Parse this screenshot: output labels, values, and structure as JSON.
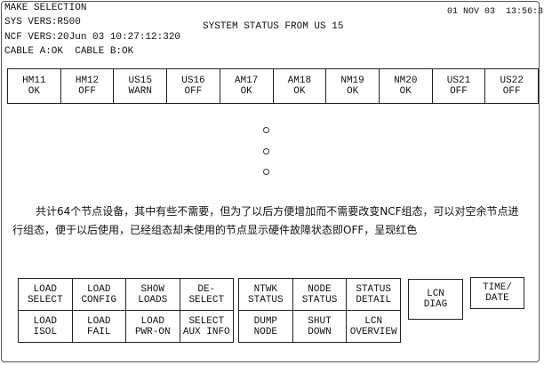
{
  "header": {
    "make_selection": "MAKE SELECTION",
    "sys_vers": "SYS VERS:R500",
    "ncf_vers": "NCF VERS:20Jun 03 10:27:12:320",
    "cables": "CABLE A:OK  CABLE B:OK",
    "title": "SYSTEM STATUS FROM US 15",
    "datetime": "01 NOV 03  13:56:32"
  },
  "nodes": [
    {
      "name": "HM11",
      "status": "OK"
    },
    {
      "name": "HM12",
      "status": "OFF"
    },
    {
      "name": "US15",
      "status": "WARN"
    },
    {
      "name": "US16",
      "status": "OFF"
    },
    {
      "name": "AM17",
      "status": "OK"
    },
    {
      "name": "AM18",
      "status": "OK"
    },
    {
      "name": "NM19",
      "status": "OK"
    },
    {
      "name": "NM20",
      "status": "OK"
    },
    {
      "name": "US21",
      "status": "OFF"
    },
    {
      "name": "US22",
      "status": "OFF"
    }
  ],
  "note": "共计64个节点设备，其中有些不需要，但为了以后方便增加而不需要改变NCF组态，可以对空余节点进行组态，便于以后使用，已经组态却未使用的节点显示硬件故障状态即OFF，呈现红色",
  "load_buttons": [
    {
      "l1": "LOAD",
      "l2": "SELECT"
    },
    {
      "l1": "LOAD",
      "l2": "CONFIG"
    },
    {
      "l1": "SHOW",
      "l2": "LOADS"
    },
    {
      "l1": "DE-",
      "l2": "SELECT"
    },
    {
      "l1": "LOAD",
      "l2": "ISOL"
    },
    {
      "l1": "LOAD",
      "l2": "FAIL"
    },
    {
      "l1": "LOAD",
      "l2": "PWR-ON"
    },
    {
      "l1": "SELECT",
      "l2": "AUX INFO"
    }
  ],
  "status_buttons": [
    {
      "l1": "NTWK",
      "l2": "STATUS"
    },
    {
      "l1": "NODE",
      "l2": "STATUS"
    },
    {
      "l1": "STATUS",
      "l2": "DETAIL"
    },
    {
      "l1": "DUMP",
      "l2": "NODE"
    },
    {
      "l1": "SHUT",
      "l2": "DOWN"
    },
    {
      "l1": "LCN",
      "l2": "OVERVIEW"
    }
  ],
  "lcn_diag": {
    "l1": "LCN",
    "l2": "DIAG"
  },
  "time_date": {
    "l1": "TIME/",
    "l2": "DATE"
  }
}
